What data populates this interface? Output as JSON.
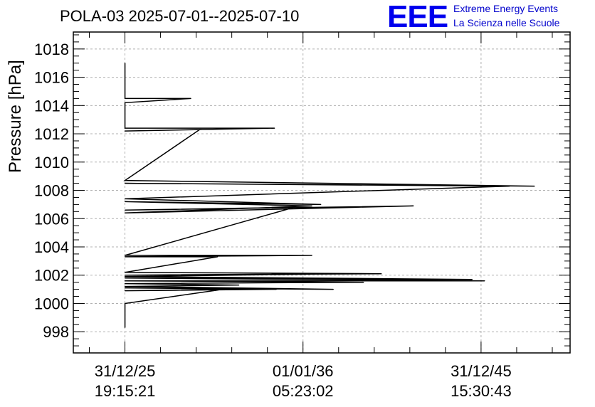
{
  "chart_data": {
    "type": "line",
    "title": "POLA-03 2025-07-01--2025-07-10",
    "ylabel": "Pressure [hPa]",
    "xlabel": "",
    "ylim": [
      996.5,
      1019.2
    ],
    "y_ticks": [
      998,
      1000,
      1002,
      1004,
      1006,
      1008,
      1010,
      1012,
      1014,
      1016,
      1018
    ],
    "x_tick_labels": [
      {
        "date": "31/12/25",
        "time": "19:15:21"
      },
      {
        "date": "01/01/36",
        "time": "05:23:02"
      },
      {
        "date": "31/12/45",
        "time": "15:30:43"
      }
    ],
    "grid": true,
    "series": [
      {
        "name": "",
        "points": [
          [
            0.0,
            1017.0
          ],
          [
            0.0,
            1014.5
          ],
          [
            0.37,
            1014.5
          ],
          [
            0.0,
            1014.2
          ],
          [
            0.0,
            1012.4
          ],
          [
            0.84,
            1012.4
          ],
          [
            0.0,
            1012.2
          ],
          [
            0.42,
            1012.3
          ],
          [
            0.0,
            1008.7
          ],
          [
            2.3,
            1008.3
          ],
          [
            0.0,
            1008.5
          ],
          [
            2.16,
            1008.3
          ],
          [
            0.0,
            1007.4
          ],
          [
            1.1,
            1007.0
          ],
          [
            0.0,
            1007.2
          ],
          [
            1.05,
            1006.9
          ],
          [
            0.0,
            1006.4
          ],
          [
            1.62,
            1006.9
          ],
          [
            0.0,
            1006.6
          ],
          [
            0.95,
            1006.8
          ],
          [
            0.0,
            1003.4
          ],
          [
            1.05,
            1003.4
          ],
          [
            0.0,
            1003.3
          ],
          [
            0.52,
            1003.3
          ],
          [
            0.0,
            1002.2
          ],
          [
            1.44,
            1002.1
          ],
          [
            0.0,
            1002.0
          ],
          [
            1.2,
            1002.1
          ],
          [
            0.0,
            1001.9
          ],
          [
            1.95,
            1001.7
          ],
          [
            0.0,
            1001.8
          ],
          [
            2.02,
            1001.6
          ],
          [
            0.0,
            1001.6
          ],
          [
            1.34,
            1001.5
          ],
          [
            0.0,
            1001.4
          ],
          [
            0.64,
            1001.3
          ],
          [
            0.0,
            1001.2
          ],
          [
            1.17,
            1001.0
          ],
          [
            0.0,
            1001.1
          ],
          [
            0.85,
            1001.0
          ],
          [
            0.0,
            1000.9
          ],
          [
            0.55,
            1001.0
          ],
          [
            0.0,
            1000.0
          ],
          [
            0.0,
            998.3
          ]
        ]
      }
    ],
    "x_unit_note": "x in years relative to 31/12/25 19:15:21",
    "x_tick_values": [
      0,
      1,
      2
    ],
    "xlim": [
      -0.29,
      2.5
    ]
  },
  "logo": {
    "mark": "EEE",
    "line1": "Extreme Energy Events",
    "line2": "La Scienza nelle Scuole"
  }
}
